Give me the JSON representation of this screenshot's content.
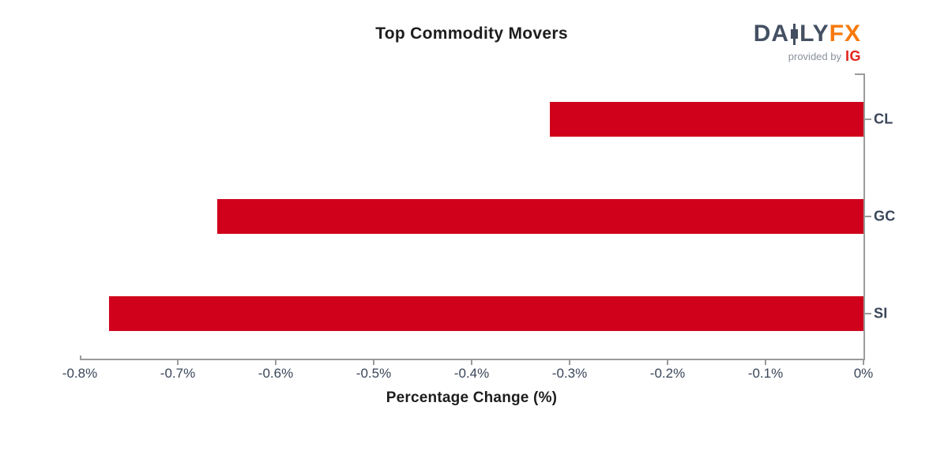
{
  "header": {
    "logo": {
      "part_da": "DA",
      "part_ly": "LY",
      "part_fx": "FX",
      "provided_by": "provided by",
      "ig": "IG",
      "colors": {
        "slate": "#445062",
        "orange": "#f8790b",
        "ig_red": "#e3251f",
        "provided_gray": "#8b919d"
      }
    }
  },
  "chart_data": {
    "type": "bar",
    "orientation": "horizontal",
    "title": "Top Commodity Movers",
    "xlabel": "Percentage Change (%)",
    "categories": [
      "CL",
      "GC",
      "SI"
    ],
    "values": [
      -0.32,
      -0.66,
      -0.77
    ],
    "xlim": [
      -0.8,
      0
    ],
    "x_tick_values": [
      -0.8,
      -0.7,
      -0.6,
      -0.5,
      -0.4,
      -0.3,
      -0.2,
      -0.1,
      0
    ],
    "x_tick_labels": [
      "-0.8%",
      "-0.7%",
      "-0.6%",
      "-0.5%",
      "-0.4%",
      "-0.3%",
      "-0.2%",
      "-0.1%",
      "0%"
    ],
    "grid": false,
    "legend": false,
    "bar_color": "#d0021b",
    "axis_color": "#9b9b9b",
    "tick_label_color": "#3a4659",
    "title_color": "#1d1d1f"
  }
}
